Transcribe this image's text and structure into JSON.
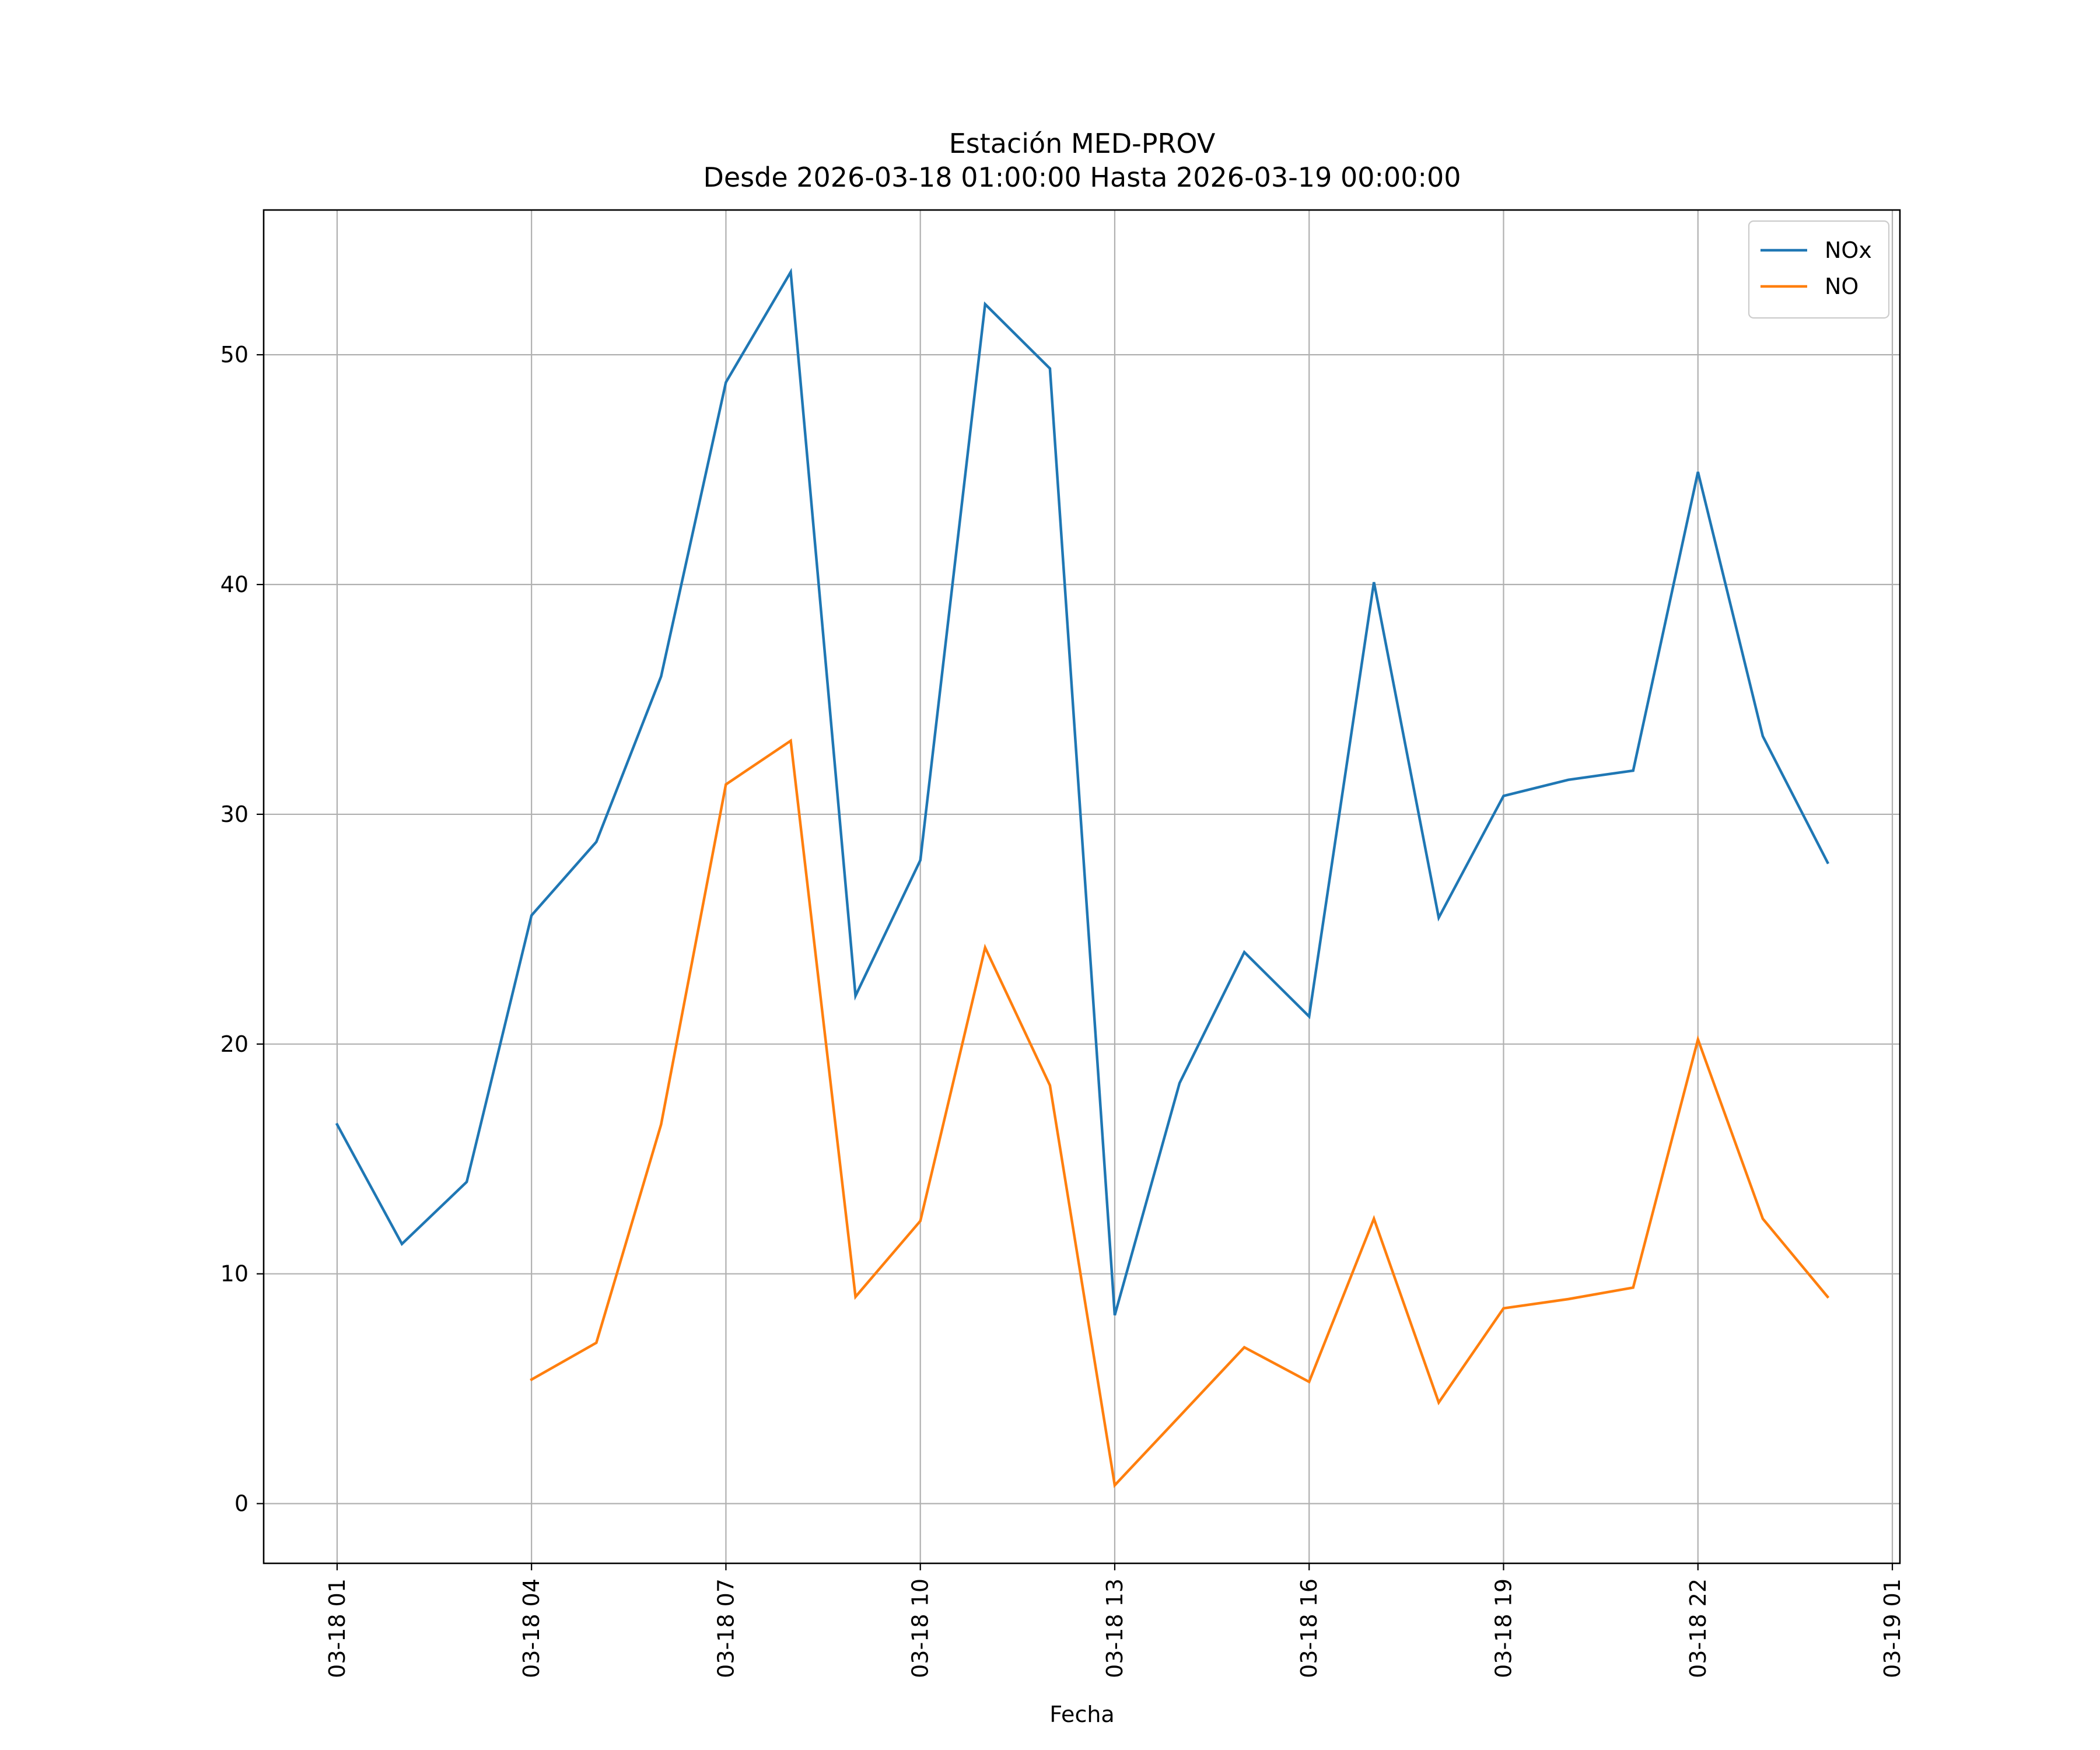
{
  "chart_data": {
    "type": "line",
    "title": "Estación MED-PROV",
    "subtitle": "Desde 2026-03-18 01:00:00 Hasta 2026-03-19 00:00:00",
    "xlabel": "Fecha",
    "ylabel": "",
    "x": [
      "2026-03-18 01:00",
      "2026-03-18 02:00",
      "2026-03-18 03:00",
      "2026-03-18 04:00",
      "2026-03-18 05:00",
      "2026-03-18 06:00",
      "2026-03-18 07:00",
      "2026-03-18 08:00",
      "2026-03-18 09:00",
      "2026-03-18 10:00",
      "2026-03-18 11:00",
      "2026-03-18 12:00",
      "2026-03-18 13:00",
      "2026-03-18 14:00",
      "2026-03-18 15:00",
      "2026-03-18 16:00",
      "2026-03-18 17:00",
      "2026-03-18 18:00",
      "2026-03-18 19:00",
      "2026-03-18 20:00",
      "2026-03-18 21:00",
      "2026-03-18 22:00",
      "2026-03-18 23:00",
      "2026-03-19 00:00"
    ],
    "x_ticks": [
      "03-18 01",
      "03-18 04",
      "03-18 07",
      "03-18 10",
      "03-18 13",
      "03-18 16",
      "03-18 19",
      "03-18 22",
      "03-19 01"
    ],
    "x_range": [
      "2026-03-17 23:52",
      "2026-03-19 01:07"
    ],
    "y_ticks": [
      0,
      10,
      20,
      30,
      40,
      50
    ],
    "ylim": [
      -2.6,
      56.3
    ],
    "grid": true,
    "legend_position": "top-right",
    "series": [
      {
        "name": "NOx",
        "color": "#1f77b4",
        "values": [
          16.5,
          11.3,
          14.0,
          25.6,
          28.8,
          36.0,
          48.8,
          53.6,
          22.1,
          28.0,
          52.2,
          49.4,
          8.2,
          18.3,
          24.0,
          21.2,
          40.1,
          25.5,
          30.8,
          31.5,
          31.9,
          44.9,
          33.4,
          27.9
        ]
      },
      {
        "name": "NO",
        "color": "#ff7f0e",
        "values": [
          null,
          null,
          null,
          5.4,
          7.0,
          16.5,
          31.3,
          33.2,
          9.0,
          12.3,
          24.2,
          18.2,
          0.8,
          3.8,
          6.8,
          5.3,
          12.4,
          4.4,
          8.5,
          8.9,
          9.4,
          20.2,
          12.4,
          9.0
        ]
      }
    ]
  }
}
